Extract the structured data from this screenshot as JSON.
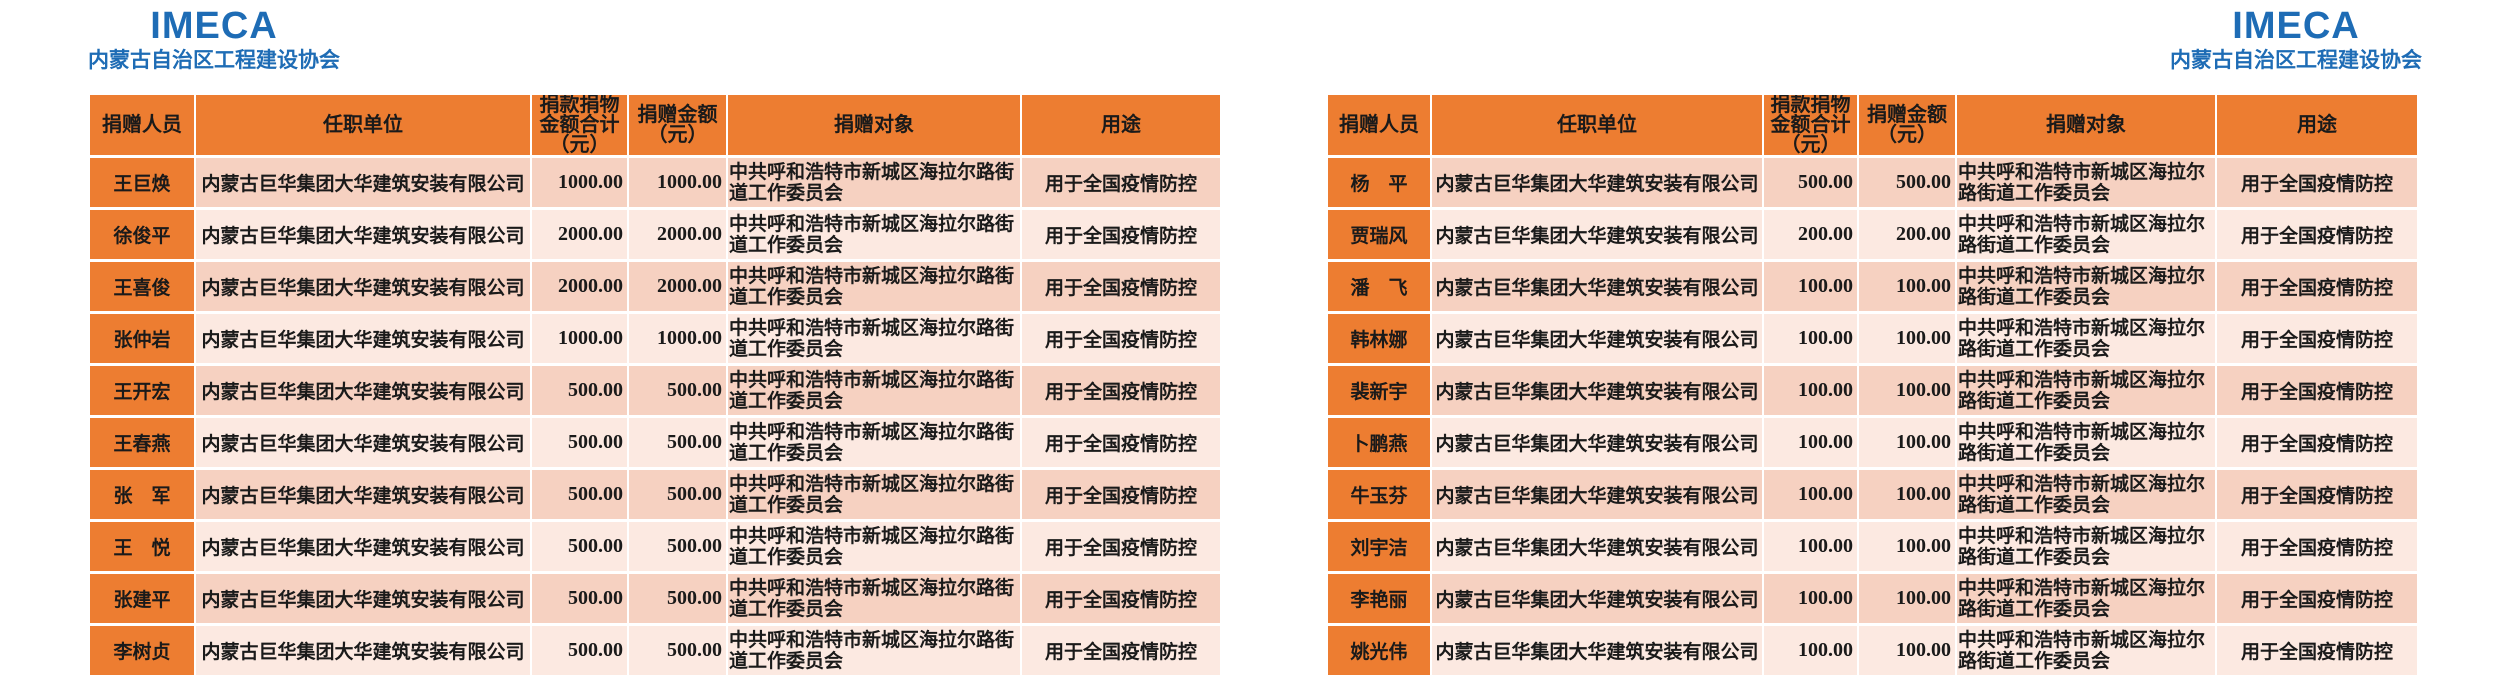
{
  "branding": {
    "logo_text": "IMECA",
    "org_name": "内蒙古自治区工程建设协会"
  },
  "colors": {
    "accent_orange": "#ED7D31",
    "row_band_dark": "#F6D1C1",
    "row_band_light": "#FCE9E1",
    "brand_blue": "#1E6CB5"
  },
  "table": {
    "columns": [
      "捐赠人员",
      "任职单位",
      "捐款捐物金额合计（元）",
      "捐赠金额（元）",
      "捐赠对象",
      "用途"
    ]
  },
  "tables": [
    {
      "side": "left",
      "rows": [
        {
          "name": "王巨焕",
          "unit": "内蒙古巨华集团大华建筑安装有限公司",
          "total": "1000.00",
          "amount": "1000.00",
          "recipient": "中共呼和浩特市新城区海拉尔路街道工作委员会",
          "purpose": "用于全国疫情防控"
        },
        {
          "name": "徐俊平",
          "unit": "内蒙古巨华集团大华建筑安装有限公司",
          "total": "2000.00",
          "amount": "2000.00",
          "recipient": "中共呼和浩特市新城区海拉尔路街道工作委员会",
          "purpose": "用于全国疫情防控"
        },
        {
          "name": "王喜俊",
          "unit": "内蒙古巨华集团大华建筑安装有限公司",
          "total": "2000.00",
          "amount": "2000.00",
          "recipient": "中共呼和浩特市新城区海拉尔路街道工作委员会",
          "purpose": "用于全国疫情防控"
        },
        {
          "name": "张仲岩",
          "unit": "内蒙古巨华集团大华建筑安装有限公司",
          "total": "1000.00",
          "amount": "1000.00",
          "recipient": "中共呼和浩特市新城区海拉尔路街道工作委员会",
          "purpose": "用于全国疫情防控"
        },
        {
          "name": "王开宏",
          "unit": "内蒙古巨华集团大华建筑安装有限公司",
          "total": "500.00",
          "amount": "500.00",
          "recipient": "中共呼和浩特市新城区海拉尔路街道工作委员会",
          "purpose": "用于全国疫情防控"
        },
        {
          "name": "王春燕",
          "unit": "内蒙古巨华集团大华建筑安装有限公司",
          "total": "500.00",
          "amount": "500.00",
          "recipient": "中共呼和浩特市新城区海拉尔路街道工作委员会",
          "purpose": "用于全国疫情防控"
        },
        {
          "name": "张　军",
          "unit": "内蒙古巨华集团大华建筑安装有限公司",
          "total": "500.00",
          "amount": "500.00",
          "recipient": "中共呼和浩特市新城区海拉尔路街道工作委员会",
          "purpose": "用于全国疫情防控"
        },
        {
          "name": "王　悦",
          "unit": "内蒙古巨华集团大华建筑安装有限公司",
          "total": "500.00",
          "amount": "500.00",
          "recipient": "中共呼和浩特市新城区海拉尔路街道工作委员会",
          "purpose": "用于全国疫情防控"
        },
        {
          "name": "张建平",
          "unit": "内蒙古巨华集团大华建筑安装有限公司",
          "total": "500.00",
          "amount": "500.00",
          "recipient": "中共呼和浩特市新城区海拉尔路街道工作委员会",
          "purpose": "用于全国疫情防控"
        },
        {
          "name": "李树贞",
          "unit": "内蒙古巨华集团大华建筑安装有限公司",
          "total": "500.00",
          "amount": "500.00",
          "recipient": "中共呼和浩特市新城区海拉尔路街道工作委员会",
          "purpose": "用于全国疫情防控"
        }
      ]
    },
    {
      "side": "right",
      "rows": [
        {
          "name": "杨　平",
          "unit": "内蒙古巨华集团大华建筑安装有限公司",
          "total": "500.00",
          "amount": "500.00",
          "recipient": "中共呼和浩特市新城区海拉尔路街道工作委员会",
          "purpose": "用于全国疫情防控"
        },
        {
          "name": "贾瑞风",
          "unit": "内蒙古巨华集团大华建筑安装有限公司",
          "total": "200.00",
          "amount": "200.00",
          "recipient": "中共呼和浩特市新城区海拉尔路街道工作委员会",
          "purpose": "用于全国疫情防控"
        },
        {
          "name": "潘　飞",
          "unit": "内蒙古巨华集团大华建筑安装有限公司",
          "total": "100.00",
          "amount": "100.00",
          "recipient": "中共呼和浩特市新城区海拉尔路街道工作委员会",
          "purpose": "用于全国疫情防控"
        },
        {
          "name": "韩林娜",
          "unit": "内蒙古巨华集团大华建筑安装有限公司",
          "total": "100.00",
          "amount": "100.00",
          "recipient": "中共呼和浩特市新城区海拉尔路街道工作委员会",
          "purpose": "用于全国疫情防控"
        },
        {
          "name": "裴新宇",
          "unit": "内蒙古巨华集团大华建筑安装有限公司",
          "total": "100.00",
          "amount": "100.00",
          "recipient": "中共呼和浩特市新城区海拉尔路街道工作委员会",
          "purpose": "用于全国疫情防控"
        },
        {
          "name": "卜鹏燕",
          "unit": "内蒙古巨华集团大华建筑安装有限公司",
          "total": "100.00",
          "amount": "100.00",
          "recipient": "中共呼和浩特市新城区海拉尔路街道工作委员会",
          "purpose": "用于全国疫情防控"
        },
        {
          "name": "牛玉芬",
          "unit": "内蒙古巨华集团大华建筑安装有限公司",
          "total": "100.00",
          "amount": "100.00",
          "recipient": "中共呼和浩特市新城区海拉尔路街道工作委员会",
          "purpose": "用于全国疫情防控"
        },
        {
          "name": "刘宇洁",
          "unit": "内蒙古巨华集团大华建筑安装有限公司",
          "total": "100.00",
          "amount": "100.00",
          "recipient": "中共呼和浩特市新城区海拉尔路街道工作委员会",
          "purpose": "用于全国疫情防控"
        },
        {
          "name": "李艳丽",
          "unit": "内蒙古巨华集团大华建筑安装有限公司",
          "total": "100.00",
          "amount": "100.00",
          "recipient": "中共呼和浩特市新城区海拉尔路街道工作委员会",
          "purpose": "用于全国疫情防控"
        },
        {
          "name": "姚光伟",
          "unit": "内蒙古巨华集团大华建筑安装有限公司",
          "total": "100.00",
          "amount": "100.00",
          "recipient": "中共呼和浩特市新城区海拉尔路街道工作委员会",
          "purpose": "用于全国疫情防控"
        }
      ]
    }
  ]
}
